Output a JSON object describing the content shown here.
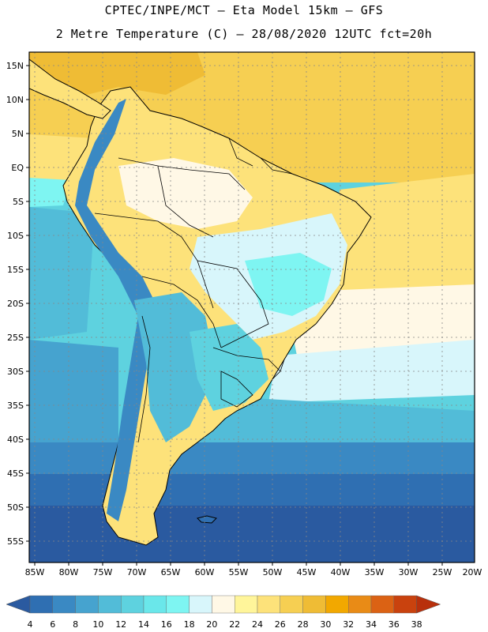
{
  "header": {
    "line1": "CPTEC/INPE/MCT –  Eta Model 15km – GFS",
    "line2": "2 Metre Temperature (C) – 28/08/2020 12UTC fct=20h"
  },
  "map": {
    "lat_labels": [
      "15N",
      "10N",
      "5N",
      "EQ",
      "5S",
      "10S",
      "15S",
      "20S",
      "25S",
      "30S",
      "35S",
      "40S",
      "45S",
      "50S",
      "55S"
    ],
    "lon_labels": [
      "85W",
      "80W",
      "75W",
      "70W",
      "65W",
      "60W",
      "55W",
      "50W",
      "45W",
      "40W",
      "35W",
      "30W",
      "25W",
      "20W"
    ],
    "lon_range": [
      -85,
      -20
    ],
    "lat_range": [
      15,
      -55
    ]
  },
  "colorbar": {
    "labels": [
      "4",
      "6",
      "8",
      "10",
      "12",
      "14",
      "16",
      "18",
      "20",
      "22",
      "24",
      "26",
      "28",
      "30",
      "32",
      "34",
      "36",
      "38"
    ],
    "colors": [
      "#2a5aa0",
      "#2f6fb2",
      "#3a89c3",
      "#46a3cf",
      "#52bcd8",
      "#5ed2df",
      "#6ae7ea",
      "#7ef5f2",
      "#d8f6fb",
      "#fff8e6",
      "#fff59a",
      "#fde27a",
      "#f6cf52",
      "#efbc35",
      "#f2a800",
      "#e98b16",
      "#db6214",
      "#c9420e",
      "#b8300c"
    ]
  }
}
